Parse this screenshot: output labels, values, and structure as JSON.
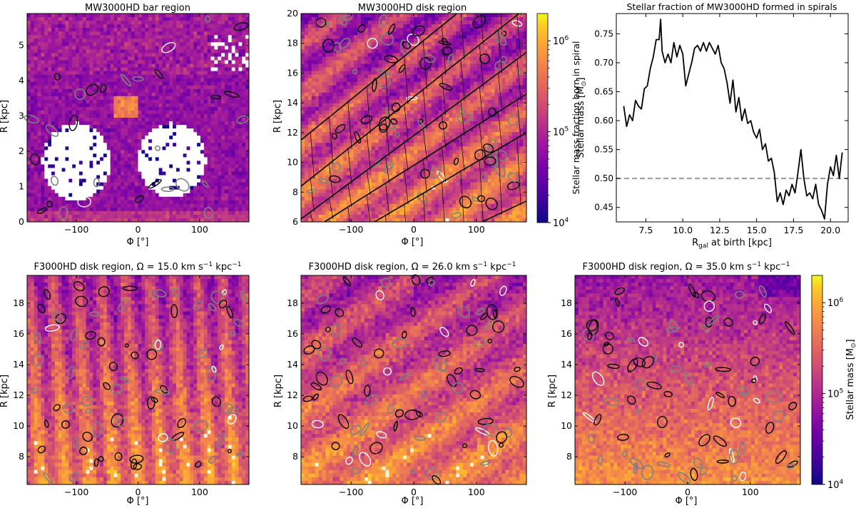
{
  "figure": "multi-panel stellar mass maps",
  "colormap": [
    "#0d0887",
    "#46039f",
    "#7201a8",
    "#9c179e",
    "#bd3786",
    "#d8576b",
    "#ed7953",
    "#fb9f3a",
    "#fdca26",
    "#f0f921"
  ],
  "contour_colors": {
    "low": "#000000",
    "mid": "#808080",
    "high": "#ffffff"
  },
  "colorbar": {
    "label_main": "Stellar mass [M",
    "label_sun": "⊙",
    "label_close": "]",
    "ticks": [
      {
        "value": 4,
        "base": "10",
        "exp": "4"
      },
      {
        "value": 5,
        "base": "10",
        "exp": "5"
      },
      {
        "value": 6,
        "base": "10",
        "exp": "6"
      }
    ],
    "range_log10": [
      4.0,
      6.3
    ]
  },
  "chart_data": [
    {
      "id": "bar",
      "type": "heatmap",
      "title": "MW3000HD bar region",
      "xlabel": "Φ [°]",
      "ylabel": "R [kpc]",
      "xlim": [
        -180,
        180
      ],
      "ylim": [
        0,
        5.9
      ],
      "xticks": [
        -100,
        0,
        100
      ],
      "yticks": [
        0,
        1,
        2,
        3,
        4,
        5
      ],
      "value": "log10 stellar mass, colour scale 10^4 to 2×10^6 M_sun; white = empty bins; contours black/grey/white",
      "features": {
        "empty_lobes_centers_deg": [
          -100,
          55
        ],
        "empty_lobes_R_kpc": [
          0.6,
          2.8
        ]
      }
    },
    {
      "id": "mwdisk",
      "type": "heatmap",
      "title": "MW3000HD disk region",
      "xlabel": "Φ [°]",
      "ylabel": "R [kpc]",
      "xlim": [
        -180,
        180
      ],
      "ylim": [
        6,
        20
      ],
      "xticks": [
        -100,
        0,
        100
      ],
      "yticks": [
        6,
        8,
        10,
        12,
        14,
        16,
        18,
        20
      ],
      "value": "log10 stellar mass; spiral arm boundaries overplotted as diagonal black lines",
      "spiral_lines": [
        {
          "phi": [
            -180,
            180
          ],
          "R": [
            11.5,
            23.8
          ]
        },
        {
          "phi": [
            -180,
            180
          ],
          "R": [
            8.4,
            20.4
          ]
        },
        {
          "phi": [
            -180,
            180
          ],
          "R": [
            6.2,
            17.4
          ]
        },
        {
          "phi": [
            -180,
            180
          ],
          "R": [
            5.0,
            14.6
          ]
        },
        {
          "phi": [
            -180,
            180
          ],
          "R": [
            3.1,
            12.0
          ]
        },
        {
          "phi": [
            -180,
            180
          ],
          "R": [
            0.3,
            7.4
          ]
        }
      ]
    },
    {
      "id": "fraction",
      "type": "line",
      "title": "Stellar fraction of MW3000HD formed in spirals",
      "xlabel_main": "R",
      "xlabel_sub": "gal",
      "xlabel_rest": " at birth [kpc]",
      "ylabel": "Stellar mass fraction born in spiral",
      "xlim": [
        5.5,
        21.2
      ],
      "ylim": [
        0.425,
        0.785
      ],
      "xticks": [
        7.5,
        10.0,
        12.5,
        15.0,
        17.5,
        20.0
      ],
      "yticks": [
        0.45,
        0.5,
        0.55,
        0.6,
        0.65,
        0.7,
        0.75
      ],
      "reference_line": {
        "y": 0.5,
        "style": "dashed",
        "color": "#999999"
      },
      "series": [
        {
          "name": "fraction",
          "x": [
            6.0,
            6.2,
            6.4,
            6.6,
            6.8,
            7.0,
            7.2,
            7.4,
            7.6,
            7.8,
            8.0,
            8.2,
            8.4,
            8.5,
            8.6,
            8.8,
            9.0,
            9.2,
            9.4,
            9.6,
            9.8,
            10.0,
            10.2,
            10.4,
            10.6,
            10.8,
            11.0,
            11.2,
            11.4,
            11.6,
            11.8,
            12.0,
            12.2,
            12.4,
            12.6,
            12.8,
            13.0,
            13.2,
            13.4,
            13.6,
            13.8,
            14.0,
            14.2,
            14.4,
            14.6,
            14.8,
            15.0,
            15.2,
            15.4,
            15.6,
            15.8,
            16.0,
            16.2,
            16.4,
            16.6,
            16.8,
            17.0,
            17.2,
            17.4,
            17.6,
            17.8,
            18.0,
            18.2,
            18.4,
            18.6,
            18.8,
            19.0,
            19.2,
            19.4,
            19.6,
            19.8,
            20.0,
            20.2,
            20.4,
            20.6,
            20.8
          ],
          "y": [
            0.625,
            0.59,
            0.61,
            0.6,
            0.635,
            0.625,
            0.62,
            0.655,
            0.66,
            0.69,
            0.71,
            0.74,
            0.74,
            0.775,
            0.72,
            0.7,
            0.715,
            0.7,
            0.735,
            0.71,
            0.73,
            0.715,
            0.66,
            0.68,
            0.7,
            0.725,
            0.73,
            0.72,
            0.735,
            0.72,
            0.735,
            0.725,
            0.715,
            0.73,
            0.7,
            0.69,
            0.665,
            0.63,
            0.67,
            0.615,
            0.64,
            0.6,
            0.62,
            0.595,
            0.6,
            0.58,
            0.57,
            0.585,
            0.55,
            0.56,
            0.53,
            0.535,
            0.51,
            0.46,
            0.475,
            0.455,
            0.48,
            0.47,
            0.49,
            0.475,
            0.51,
            0.55,
            0.5,
            0.47,
            0.475,
            0.465,
            0.49,
            0.455,
            0.445,
            0.43,
            0.49,
            0.52,
            0.505,
            0.54,
            0.5,
            0.545
          ]
        }
      ]
    },
    {
      "id": "f15",
      "type": "heatmap",
      "title": "F3000HD disk region, Ω = 15.0 km s",
      "title_exp1": "−1",
      "title_mid": " kpc",
      "title_exp2": "−1",
      "xlabel": "Φ [°]",
      "ylabel": "R [kpc]",
      "xlim": [
        -180,
        180
      ],
      "ylim": [
        6.2,
        19.8
      ],
      "xticks": [
        -100,
        0,
        100
      ],
      "yticks": [
        8,
        10,
        12,
        14,
        16,
        18
      ],
      "value": "log10 stellar mass; nearly vertical clumpy structures"
    },
    {
      "id": "f26",
      "type": "heatmap",
      "title": "F3000HD disk region, Ω = 26.0 km s",
      "title_exp1": "−1",
      "title_mid": " kpc",
      "title_exp2": "−1",
      "xlabel": "Φ [°]",
      "ylabel": "R [kpc]",
      "xlim": [
        -180,
        180
      ],
      "ylim": [
        6.2,
        19.8
      ],
      "xticks": [
        -100,
        0,
        100
      ],
      "yticks": [
        8,
        10,
        12,
        14,
        16,
        18
      ],
      "value": "log10 stellar mass; diagonal spiral-like structures"
    },
    {
      "id": "f35",
      "type": "heatmap",
      "title": "F3000HD disk region, Ω = 35.0 km s",
      "title_exp1": "−1",
      "title_mid": " kpc",
      "title_exp2": "−1",
      "xlabel": "Φ [°]",
      "ylabel": "R [kpc]",
      "xlim": [
        -180,
        180
      ],
      "ylim": [
        6.2,
        19.8
      ],
      "xticks": [
        -100,
        0,
        100
      ],
      "yticks": [
        8,
        10,
        12,
        14,
        16,
        18
      ],
      "value": "log10 stellar mass; flocculent, weak structure"
    }
  ]
}
